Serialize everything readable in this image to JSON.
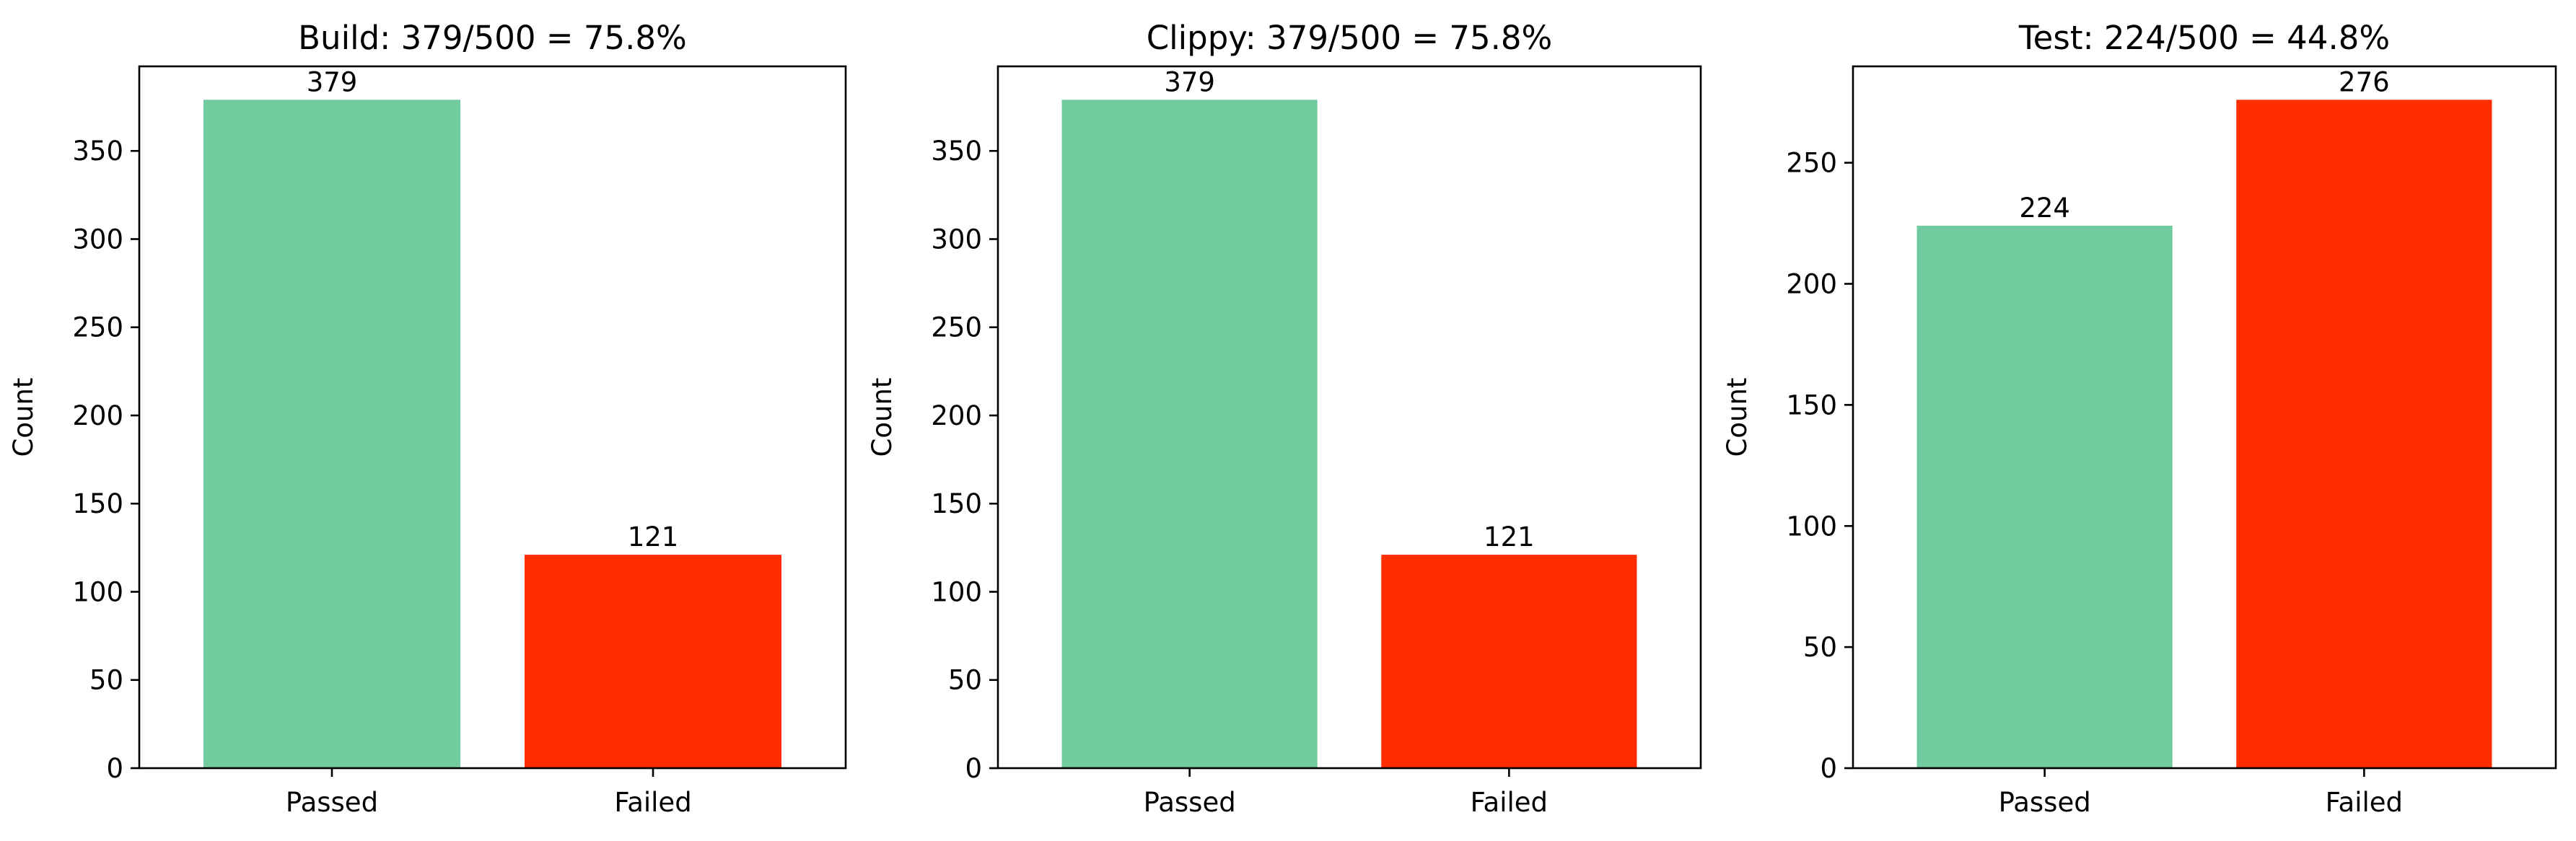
{
  "colors": {
    "passed": "#72cb9f",
    "failed": "#ff2d00"
  },
  "chart_data": [
    {
      "type": "bar",
      "title": "Build: 379/500 = 75.8%",
      "xlabel": "",
      "ylabel": "Count",
      "categories": [
        "Passed",
        "Failed"
      ],
      "values": [
        379,
        121
      ],
      "value_labels": [
        "379",
        "121"
      ],
      "ylim": [
        0,
        397.95
      ],
      "yticks": [
        0,
        50,
        100,
        150,
        200,
        250,
        300,
        350
      ],
      "ytick_labels": [
        "0",
        "50",
        "100",
        "150",
        "200",
        "250",
        "300",
        "350"
      ],
      "grid": false,
      "legend": "none"
    },
    {
      "type": "bar",
      "title": "Clippy: 379/500 = 75.8%",
      "xlabel": "",
      "ylabel": "Count",
      "categories": [
        "Passed",
        "Failed"
      ],
      "values": [
        379,
        121
      ],
      "value_labels": [
        "379",
        "121"
      ],
      "ylim": [
        0,
        397.95
      ],
      "yticks": [
        0,
        50,
        100,
        150,
        200,
        250,
        300,
        350
      ],
      "ytick_labels": [
        "0",
        "50",
        "100",
        "150",
        "200",
        "250",
        "300",
        "350"
      ],
      "grid": false,
      "legend": "none"
    },
    {
      "type": "bar",
      "title": "Test: 224/500 = 44.8%",
      "xlabel": "",
      "ylabel": "Count",
      "categories": [
        "Passed",
        "Failed"
      ],
      "values": [
        224,
        276
      ],
      "value_labels": [
        "224",
        "276"
      ],
      "ylim": [
        0,
        289.8
      ],
      "yticks": [
        0,
        50,
        100,
        150,
        200,
        250
      ],
      "ytick_labels": [
        "0",
        "50",
        "100",
        "150",
        "200",
        "250"
      ],
      "grid": false,
      "legend": "none"
    }
  ]
}
